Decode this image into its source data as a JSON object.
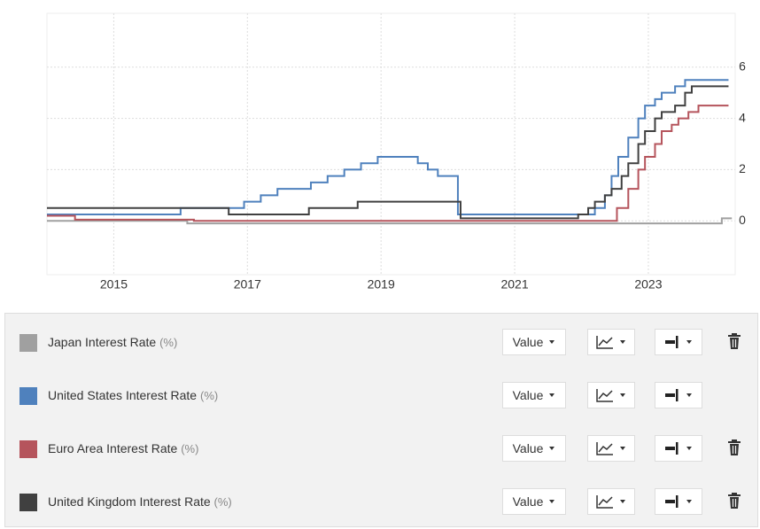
{
  "chart_data": {
    "type": "step-line",
    "xlim": [
      2014.0,
      2024.3
    ],
    "xticks": [
      2015,
      2017,
      2019,
      2021,
      2023
    ],
    "ylim": [
      -2.1,
      8.1
    ],
    "yticks": [
      0,
      2,
      4,
      6
    ],
    "grid": true,
    "series": [
      {
        "name": "Japan Interest Rate",
        "color": "#a0a0a0",
        "x": [
          2014.0,
          2016.1,
          2024.1,
          2024.25
        ],
        "values": [
          0,
          -0.1,
          0.1,
          0.1
        ]
      },
      {
        "name": "United States Interest Rate",
        "color": "#4f81bd",
        "x": [
          2014.0,
          2016.0,
          2016.95,
          2017.2,
          2017.45,
          2017.95,
          2018.2,
          2018.45,
          2018.7,
          2018.95,
          2019.55,
          2019.7,
          2019.85,
          2020.15,
          2022.2,
          2022.35,
          2022.45,
          2022.55,
          2022.7,
          2022.85,
          2022.95,
          2023.1,
          2023.2,
          2023.4,
          2023.55,
          2024.2
        ],
        "values": [
          0.25,
          0.5,
          0.75,
          1.0,
          1.25,
          1.5,
          1.75,
          2.0,
          2.25,
          2.5,
          2.25,
          2.0,
          1.75,
          0.25,
          0.5,
          1.0,
          1.75,
          2.5,
          3.25,
          4.0,
          4.5,
          4.75,
          5.0,
          5.25,
          5.5,
          5.5
        ]
      },
      {
        "name": "Euro Area Interest Rate",
        "color": "#b5545c",
        "x": [
          2014.0,
          2014.42,
          2016.2,
          2022.53,
          2022.7,
          2022.85,
          2022.95,
          2023.1,
          2023.2,
          2023.35,
          2023.45,
          2023.6,
          2023.75,
          2024.2
        ],
        "values": [
          0.2,
          0.05,
          0,
          0.5,
          1.25,
          2.0,
          2.5,
          3.0,
          3.5,
          3.75,
          4.0,
          4.25,
          4.5,
          4.5
        ]
      },
      {
        "name": "United Kingdom Interest Rate",
        "color": "#404040",
        "x": [
          2014.0,
          2016.72,
          2017.92,
          2018.65,
          2020.19,
          2021.95,
          2022.1,
          2022.2,
          2022.35,
          2022.45,
          2022.6,
          2022.7,
          2022.85,
          2022.95,
          2023.1,
          2023.2,
          2023.4,
          2023.55,
          2023.65,
          2024.2
        ],
        "values": [
          0.5,
          0.25,
          0.5,
          0.75,
          0.1,
          0.25,
          0.5,
          0.75,
          1.0,
          1.25,
          1.75,
          2.25,
          3.0,
          3.5,
          4.0,
          4.25,
          4.5,
          5.0,
          5.25,
          5.25
        ]
      }
    ]
  },
  "panel": {
    "rows": [
      {
        "unit": "(%)",
        "mode": "Value",
        "deletable": true
      },
      {
        "unit": "(%)",
        "mode": "Value",
        "deletable": false
      },
      {
        "unit": "(%)",
        "mode": "Value",
        "deletable": true
      },
      {
        "unit": "(%)",
        "mode": "Value",
        "deletable": true
      }
    ]
  }
}
